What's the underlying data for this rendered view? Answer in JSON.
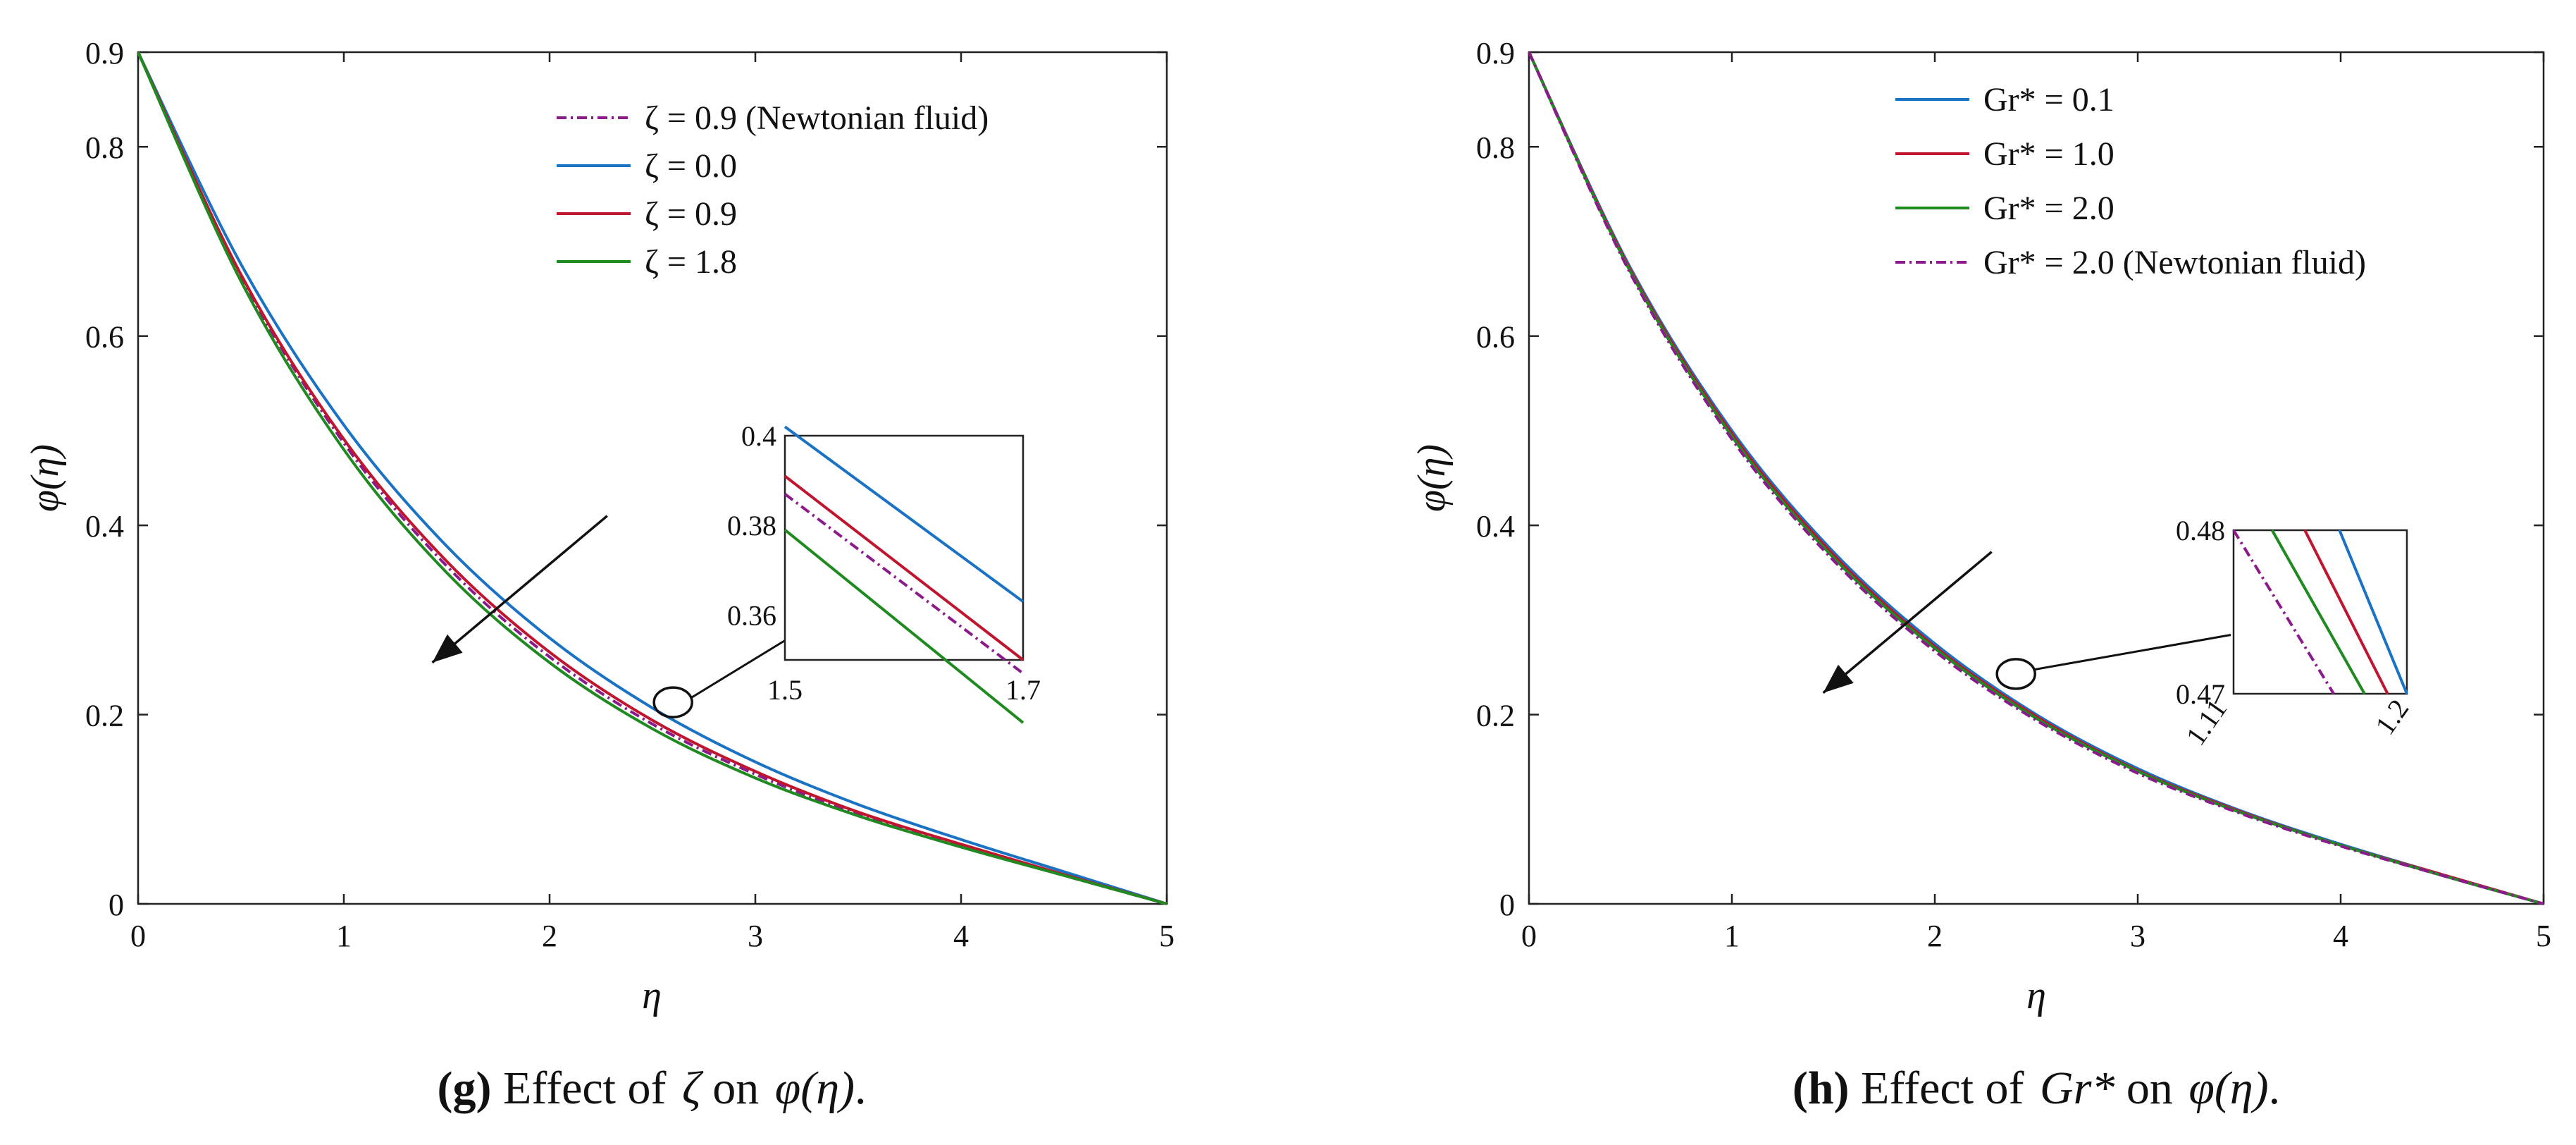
{
  "chart_data": [
    {
      "type": "line",
      "panel": "g",
      "caption": {
        "tag": "(g)",
        "text": " Effect of ",
        "var": "ζ",
        "mid": " on ",
        "func": "φ(η)",
        "end": "."
      },
      "xlabel": "η",
      "ylabel": "φ(η)",
      "xlim": [
        0,
        5
      ],
      "ylim": [
        0,
        0.9
      ],
      "xticks": [
        0,
        1,
        2,
        3,
        4,
        5
      ],
      "xtick_labels": [
        "0",
        "1",
        "2",
        "3",
        "4",
        "5"
      ],
      "yticks": [
        0,
        0.2,
        0.4,
        0.6,
        0.8,
        0.9
      ],
      "ytick_labels": [
        "0",
        "0.2",
        "0.4",
        "0.6",
        "0.8",
        "0.9"
      ],
      "legend_position": "top-right",
      "series": [
        {
          "name": "ζ = 0.9 (Newtonian fluid)",
          "color": "#8b1a8b",
          "dash": true,
          "x": [
            0,
            0.5,
            1,
            1.5,
            2,
            2.5,
            3,
            3.5,
            4,
            4.5,
            5
          ],
          "y": [
            0.9,
            0.663,
            0.487,
            0.357,
            0.261,
            0.19,
            0.137,
            0.095,
            0.061,
            0.03,
            0
          ]
        },
        {
          "name": "ζ = 0.0",
          "color": "#1a72c4",
          "dash": false,
          "x": [
            0,
            0.5,
            1,
            1.5,
            2,
            2.5,
            3,
            3.5,
            4,
            4.5,
            5
          ],
          "y": [
            0.9,
            0.676,
            0.506,
            0.378,
            0.281,
            0.207,
            0.15,
            0.105,
            0.068,
            0.034,
            0
          ]
        },
        {
          "name": "ζ = 0.9",
          "color": "#c0152f",
          "dash": false,
          "x": [
            0,
            0.5,
            1,
            1.5,
            2,
            2.5,
            3,
            3.5,
            4,
            4.5,
            5
          ],
          "y": [
            0.9,
            0.665,
            0.491,
            0.362,
            0.266,
            0.194,
            0.14,
            0.097,
            0.063,
            0.031,
            0
          ]
        },
        {
          "name": "ζ = 1.8",
          "color": "#1f8a1f",
          "dash": false,
          "x": [
            0,
            0.5,
            1,
            1.5,
            2,
            2.5,
            3,
            3.5,
            4,
            4.5,
            5
          ],
          "y": [
            0.9,
            0.658,
            0.48,
            0.35,
            0.255,
            0.185,
            0.133,
            0.093,
            0.06,
            0.03,
            0
          ]
        }
      ],
      "inset": {
        "xlim": [
          1.5,
          1.7
        ],
        "ylim": [
          0.35,
          0.4
        ],
        "xtick_labels": [
          "1.5",
          "1.7"
        ],
        "ytick_labels": [
          "0.36",
          "0.38",
          "0.4"
        ],
        "yticks": [
          0.36,
          0.38,
          0.4
        ],
        "lines": [
          {
            "series": 1,
            "x": [
              1.5,
              1.7
            ],
            "y": [
              0.402,
              0.363
            ]
          },
          {
            "series": 2,
            "x": [
              1.5,
              1.7
            ],
            "y": [
              0.391,
              0.35
            ]
          },
          {
            "series": 0,
            "x": [
              1.5,
              1.7
            ],
            "y": [
              0.387,
              0.347
            ]
          },
          {
            "series": 3,
            "x": [
              1.5,
              1.7
            ],
            "y": [
              0.379,
              0.336
            ]
          }
        ],
        "marker": {
          "x": 2.6,
          "y": 0.213
        }
      },
      "arrow": {
        "from": [
          2.28,
          0.41
        ],
        "to": [
          1.43,
          0.255
        ]
      }
    },
    {
      "type": "line",
      "panel": "h",
      "caption": {
        "tag": "(h)",
        "text": " Effect of ",
        "var": "Gr*",
        "mid": " on ",
        "func": "φ(η)",
        "end": "."
      },
      "xlabel": "η",
      "ylabel": "φ(η)",
      "xlim": [
        0,
        5
      ],
      "ylim": [
        0,
        0.9
      ],
      "xticks": [
        0,
        1,
        2,
        3,
        4,
        5
      ],
      "xtick_labels": [
        "0",
        "1",
        "2",
        "3",
        "4",
        "5"
      ],
      "yticks": [
        0,
        0.2,
        0.4,
        0.6,
        0.8,
        0.9
      ],
      "ytick_labels": [
        "0",
        "0.2",
        "0.4",
        "0.6",
        "0.8",
        "0.9"
      ],
      "legend_position": "top-left",
      "series": [
        {
          "name": "Gr* = 0.1",
          "color": "#1a72c4",
          "dash": false,
          "x": [
            0,
            0.5,
            1,
            1.5,
            2,
            2.5,
            3,
            3.5,
            4,
            4.5,
            5
          ],
          "y": [
            0.9,
            0.672,
            0.5,
            0.372,
            0.275,
            0.2,
            0.143,
            0.099,
            0.063,
            0.031,
            0
          ]
        },
        {
          "name": "Gr* = 1.0",
          "color": "#c0152f",
          "dash": false,
          "x": [
            0,
            0.5,
            1,
            1.5,
            2,
            2.5,
            3,
            3.5,
            4,
            4.5,
            5
          ],
          "y": [
            0.9,
            0.67,
            0.497,
            0.369,
            0.272,
            0.198,
            0.141,
            0.098,
            0.062,
            0.031,
            0
          ]
        },
        {
          "name": "Gr* = 2.0",
          "color": "#1f8a1f",
          "dash": false,
          "x": [
            0,
            0.5,
            1,
            1.5,
            2,
            2.5,
            3,
            3.5,
            4,
            4.5,
            5
          ],
          "y": [
            0.9,
            0.668,
            0.494,
            0.366,
            0.27,
            0.196,
            0.14,
            0.097,
            0.062,
            0.03,
            0
          ]
        },
        {
          "name": "Gr* = 2.0 (Newtonian fluid)",
          "color": "#8b1a8b",
          "dash": true,
          "x": [
            0,
            0.5,
            1,
            1.5,
            2,
            2.5,
            3,
            3.5,
            4,
            4.5,
            5
          ],
          "y": [
            0.9,
            0.666,
            0.491,
            0.363,
            0.267,
            0.194,
            0.138,
            0.096,
            0.061,
            0.03,
            0
          ]
        }
      ],
      "inset": {
        "xlim": [
          1.11,
          1.2
        ],
        "ylim": [
          0.47,
          0.48
        ],
        "xtick_labels": [
          "1.11",
          "1.2"
        ],
        "ytick_labels": [
          "0.47",
          "0.48"
        ],
        "yticks": [
          0.47,
          0.48
        ],
        "lines": [
          {
            "series": 3,
            "x": [
              1.11,
              1.162
            ],
            "y": [
              0.48,
              0.47
            ]
          },
          {
            "series": 2,
            "x": [
              1.13,
              1.178
            ],
            "y": [
              0.48,
              0.47
            ]
          },
          {
            "series": 1,
            "x": [
              1.147,
              1.19
            ],
            "y": [
              0.48,
              0.47
            ]
          },
          {
            "series": 0,
            "x": [
              1.165,
              1.2
            ],
            "y": [
              0.48,
              0.47
            ]
          }
        ],
        "marker": {
          "x": 2.4,
          "y": 0.243
        }
      },
      "arrow": {
        "from": [
          2.28,
          0.372
        ],
        "to": [
          1.45,
          0.223
        ]
      }
    }
  ]
}
